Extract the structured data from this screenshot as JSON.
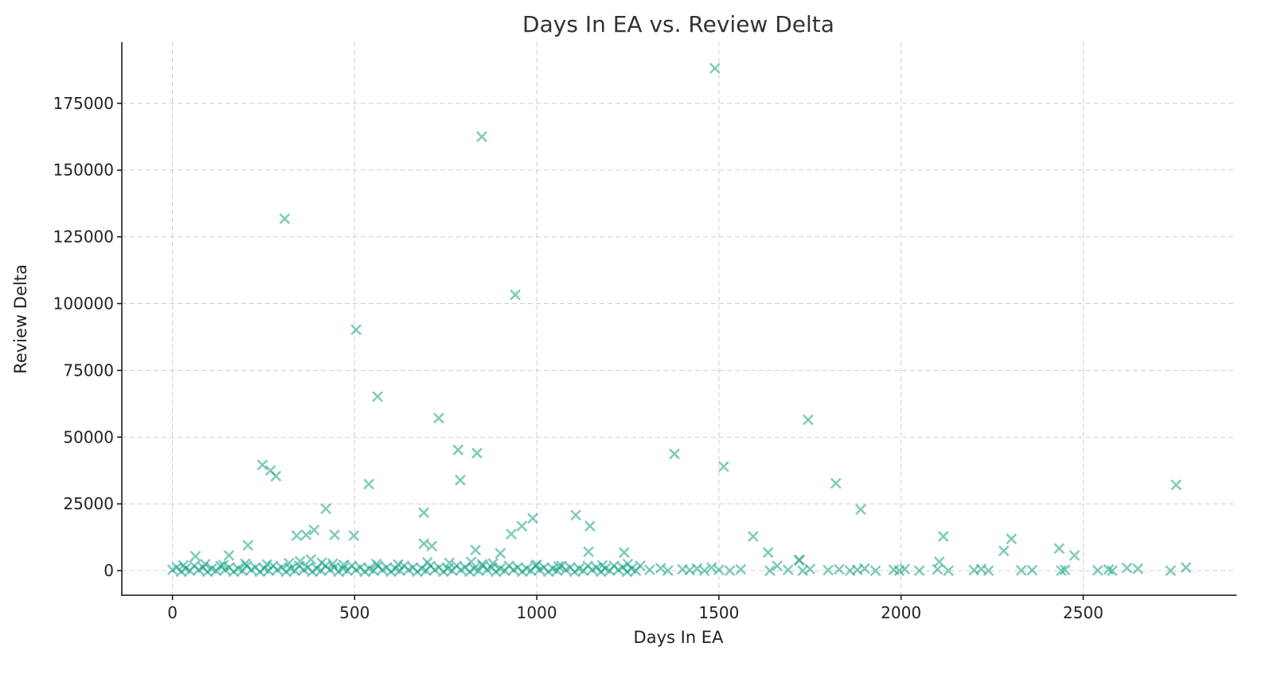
{
  "chart_data": {
    "type": "scatter",
    "title": "Days In EA vs. Review Delta",
    "xlabel": "Days In EA",
    "ylabel": "Review Delta",
    "xlim": [
      -139,
      2921
    ],
    "ylim": [
      -9200,
      197900
    ],
    "xticks": [
      0,
      500,
      1000,
      1500,
      2000,
      2500
    ],
    "yticks": [
      0,
      25000,
      50000,
      75000,
      100000,
      125000,
      150000,
      175000
    ],
    "grid": true,
    "marker": "x",
    "color": "#16a085",
    "points": [
      [
        1489,
        188100
      ],
      [
        849,
        162500
      ],
      [
        308,
        131800
      ],
      [
        941,
        103300
      ],
      [
        504,
        90200
      ],
      [
        563,
        65200
      ],
      [
        731,
        57100
      ],
      [
        1745,
        56500
      ],
      [
        784,
        45200
      ],
      [
        836,
        44000
      ],
      [
        1378,
        43700
      ],
      [
        247,
        39600
      ],
      [
        1513,
        39000
      ],
      [
        269,
        37500
      ],
      [
        284,
        35400
      ],
      [
        790,
        33900
      ],
      [
        1821,
        32700
      ],
      [
        539,
        32400
      ],
      [
        2755,
        32100
      ],
      [
        421,
        23200
      ],
      [
        690,
        21700
      ],
      [
        1889,
        22900
      ],
      [
        1107,
        20800
      ],
      [
        989,
        19600
      ],
      [
        959,
        16700
      ],
      [
        1146,
        16700
      ],
      [
        930,
        13700
      ],
      [
        1594,
        12800
      ],
      [
        2116,
        12800
      ],
      [
        2303,
        11900
      ],
      [
        389,
        15200
      ],
      [
        341,
        13100
      ],
      [
        367,
        13400
      ],
      [
        445,
        13400
      ],
      [
        498,
        13100
      ],
      [
        207,
        9500
      ],
      [
        2282,
        7400
      ],
      [
        2434,
        8300
      ],
      [
        1635,
        6800
      ],
      [
        2476,
        5700
      ],
      [
        63,
        5400
      ],
      [
        155,
        5700
      ],
      [
        690,
        10100
      ],
      [
        712,
        9200
      ],
      [
        832,
        7700
      ],
      [
        900,
        6500
      ],
      [
        1240,
        6800
      ],
      [
        1142,
        7100
      ],
      [
        1721,
        3900
      ],
      [
        2105,
        3300
      ],
      [
        2782,
        1200
      ],
      [
        0,
        300
      ],
      [
        12,
        1200
      ],
      [
        24,
        -400
      ],
      [
        36,
        800
      ],
      [
        48,
        0
      ],
      [
        60,
        1800
      ],
      [
        72,
        300
      ],
      [
        84,
        1200
      ],
      [
        96,
        -400
      ],
      [
        108,
        800
      ],
      [
        120,
        0
      ],
      [
        132,
        1800
      ],
      [
        144,
        300
      ],
      [
        156,
        1200
      ],
      [
        168,
        -400
      ],
      [
        180,
        800
      ],
      [
        192,
        0
      ],
      [
        204,
        1800
      ],
      [
        216,
        300
      ],
      [
        228,
        1200
      ],
      [
        240,
        -400
      ],
      [
        252,
        800
      ],
      [
        264,
        0
      ],
      [
        276,
        1800
      ],
      [
        288,
        300
      ],
      [
        300,
        1200
      ],
      [
        312,
        -400
      ],
      [
        324,
        800
      ],
      [
        336,
        0
      ],
      [
        348,
        1800
      ],
      [
        360,
        300
      ],
      [
        372,
        1200
      ],
      [
        384,
        -400
      ],
      [
        396,
        800
      ],
      [
        408,
        0
      ],
      [
        420,
        1800
      ],
      [
        432,
        300
      ],
      [
        444,
        1200
      ],
      [
        456,
        -400
      ],
      [
        468,
        800
      ],
      [
        480,
        0
      ],
      [
        492,
        1800
      ],
      [
        504,
        300
      ],
      [
        516,
        1200
      ],
      [
        528,
        -400
      ],
      [
        540,
        800
      ],
      [
        552,
        0
      ],
      [
        564,
        1800
      ],
      [
        576,
        300
      ],
      [
        588,
        1200
      ],
      [
        600,
        -400
      ],
      [
        612,
        800
      ],
      [
        624,
        0
      ],
      [
        636,
        1800
      ],
      [
        648,
        300
      ],
      [
        660,
        1200
      ],
      [
        672,
        -400
      ],
      [
        684,
        800
      ],
      [
        696,
        0
      ],
      [
        708,
        1800
      ],
      [
        720,
        300
      ],
      [
        732,
        1200
      ],
      [
        744,
        -400
      ],
      [
        756,
        800
      ],
      [
        768,
        0
      ],
      [
        780,
        1800
      ],
      [
        792,
        300
      ],
      [
        804,
        1200
      ],
      [
        816,
        -400
      ],
      [
        828,
        800
      ],
      [
        840,
        0
      ],
      [
        852,
        1800
      ],
      [
        864,
        300
      ],
      [
        876,
        1200
      ],
      [
        888,
        -400
      ],
      [
        900,
        800
      ],
      [
        912,
        0
      ],
      [
        924,
        1800
      ],
      [
        936,
        300
      ],
      [
        948,
        1200
      ],
      [
        960,
        -400
      ],
      [
        972,
        800
      ],
      [
        984,
        0
      ],
      [
        996,
        1800
      ],
      [
        1008,
        300
      ],
      [
        1020,
        1200
      ],
      [
        1032,
        -400
      ],
      [
        1044,
        800
      ],
      [
        1056,
        0
      ],
      [
        1068,
        1800
      ],
      [
        1080,
        300
      ],
      [
        1092,
        1200
      ],
      [
        1104,
        -400
      ],
      [
        1116,
        800
      ],
      [
        1128,
        0
      ],
      [
        1140,
        1800
      ],
      [
        1152,
        300
      ],
      [
        1164,
        1200
      ],
      [
        1176,
        -400
      ],
      [
        1188,
        800
      ],
      [
        1200,
        0
      ],
      [
        1212,
        1800
      ],
      [
        1224,
        300
      ],
      [
        1236,
        1200
      ],
      [
        1248,
        -400
      ],
      [
        1260,
        800
      ],
      [
        1272,
        0
      ],
      [
        1284,
        1800
      ],
      [
        320,
        2800
      ],
      [
        350,
        3500
      ],
      [
        380,
        4200
      ],
      [
        410,
        3000
      ],
      [
        440,
        2600
      ],
      [
        470,
        2200
      ],
      [
        560,
        2500
      ],
      [
        620,
        2300
      ],
      [
        700,
        3100
      ],
      [
        760,
        2900
      ],
      [
        820,
        3300
      ],
      [
        850,
        2400
      ],
      [
        880,
        2700
      ],
      [
        1000,
        2200
      ],
      [
        1060,
        1600
      ],
      [
        1180,
        2000
      ],
      [
        1250,
        2500
      ],
      [
        30,
        2000
      ],
      [
        90,
        2400
      ],
      [
        140,
        2100
      ],
      [
        200,
        2600
      ],
      [
        260,
        2300
      ],
      [
        1310,
        300
      ],
      [
        1340,
        900
      ],
      [
        1360,
        0
      ],
      [
        1400,
        500
      ],
      [
        1420,
        200
      ],
      [
        1440,
        800
      ],
      [
        1460,
        0
      ],
      [
        1480,
        1200
      ],
      [
        1500,
        300
      ],
      [
        1530,
        0
      ],
      [
        1560,
        500
      ],
      [
        1640,
        0
      ],
      [
        1660,
        1800
      ],
      [
        1690,
        300
      ],
      [
        1720,
        4000
      ],
      [
        1730,
        0
      ],
      [
        1750,
        600
      ],
      [
        1800,
        200
      ],
      [
        1830,
        500
      ],
      [
        1860,
        0
      ],
      [
        1880,
        300
      ],
      [
        1900,
        800
      ],
      [
        1930,
        0
      ],
      [
        1980,
        300
      ],
      [
        1995,
        0
      ],
      [
        2010,
        600
      ],
      [
        2050,
        0
      ],
      [
        2100,
        500
      ],
      [
        2130,
        0
      ],
      [
        2200,
        200
      ],
      [
        2220,
        600
      ],
      [
        2240,
        0
      ],
      [
        2330,
        100
      ],
      [
        2360,
        200
      ],
      [
        2440,
        0
      ],
      [
        2450,
        300
      ],
      [
        2540,
        100
      ],
      [
        2570,
        400
      ],
      [
        2580,
        0
      ],
      [
        2620,
        1000
      ],
      [
        2650,
        700
      ],
      [
        2740,
        0
      ]
    ]
  }
}
